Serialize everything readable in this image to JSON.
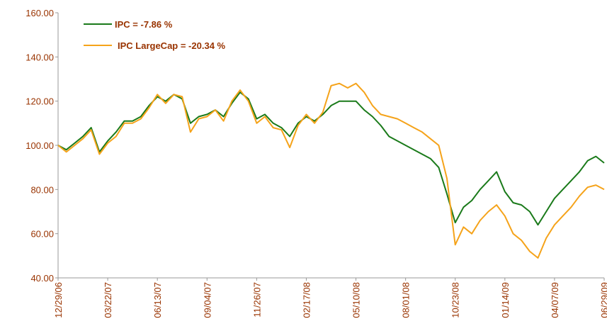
{
  "chart_data": {
    "type": "line",
    "categories": [
      "12/29/06",
      null,
      null,
      null,
      null,
      null,
      "03/22/07",
      null,
      null,
      null,
      null,
      null,
      "06/13/07",
      null,
      null,
      null,
      null,
      null,
      "09/04/07",
      null,
      null,
      null,
      null,
      null,
      "11/26/07",
      null,
      null,
      null,
      null,
      null,
      "02/17/08",
      null,
      null,
      null,
      null,
      null,
      "05/10/08",
      null,
      null,
      null,
      null,
      null,
      "08/01/08",
      null,
      null,
      null,
      null,
      null,
      "10/23/08",
      null,
      null,
      null,
      null,
      null,
      "01/14/09",
      null,
      null,
      null,
      null,
      null,
      "04/07/09",
      null,
      null,
      null,
      null,
      null,
      "06/29/09"
    ],
    "series": [
      {
        "name": "IPC = -7.86 %",
        "color": "#1a7a1a",
        "values": [
          100,
          98,
          101,
          104,
          108,
          97,
          102,
          106,
          111,
          111,
          113,
          118,
          122,
          120,
          123,
          121,
          110,
          113,
          114,
          116,
          113,
          119,
          124,
          121,
          112,
          114,
          110,
          108,
          104,
          110,
          113,
          111,
          114,
          118,
          120,
          120,
          120,
          116,
          113,
          109,
          104,
          102,
          100,
          98,
          96,
          94,
          90,
          78,
          65,
          72,
          75,
          80,
          84,
          88,
          79,
          74,
          73,
          70,
          64,
          70,
          76,
          80,
          84,
          88,
          93,
          95,
          92
        ]
      },
      {
        "name": "IPC LargeCap = -20.34 %",
        "color": "#f5a31a",
        "values": [
          100,
          97,
          100,
          103,
          107,
          96,
          101,
          104,
          110,
          110,
          112,
          117,
          123,
          119,
          123,
          122,
          106,
          112,
          113,
          116,
          111,
          120,
          125,
          120,
          110,
          113,
          108,
          107,
          99,
          109,
          114,
          110,
          115,
          127,
          128,
          126,
          128,
          124,
          118,
          114,
          113,
          112,
          110,
          108,
          106,
          103,
          100,
          85,
          55,
          63,
          60,
          66,
          70,
          73,
          68,
          60,
          57,
          52,
          49,
          58,
          64,
          68,
          72,
          77,
          81,
          82,
          80
        ]
      }
    ],
    "ylim": [
      40,
      160
    ],
    "yticks": [
      {
        "value": 40,
        "label": "40.00"
      },
      {
        "value": 60,
        "label": "60.00"
      },
      {
        "value": 80,
        "label": "80.00"
      },
      {
        "value": 100,
        "label": "100.00"
      },
      {
        "value": 120,
        "label": "120.00"
      },
      {
        "value": 140,
        "label": "140.00"
      },
      {
        "value": 160,
        "label": "160.00"
      }
    ],
    "grid": false
  }
}
